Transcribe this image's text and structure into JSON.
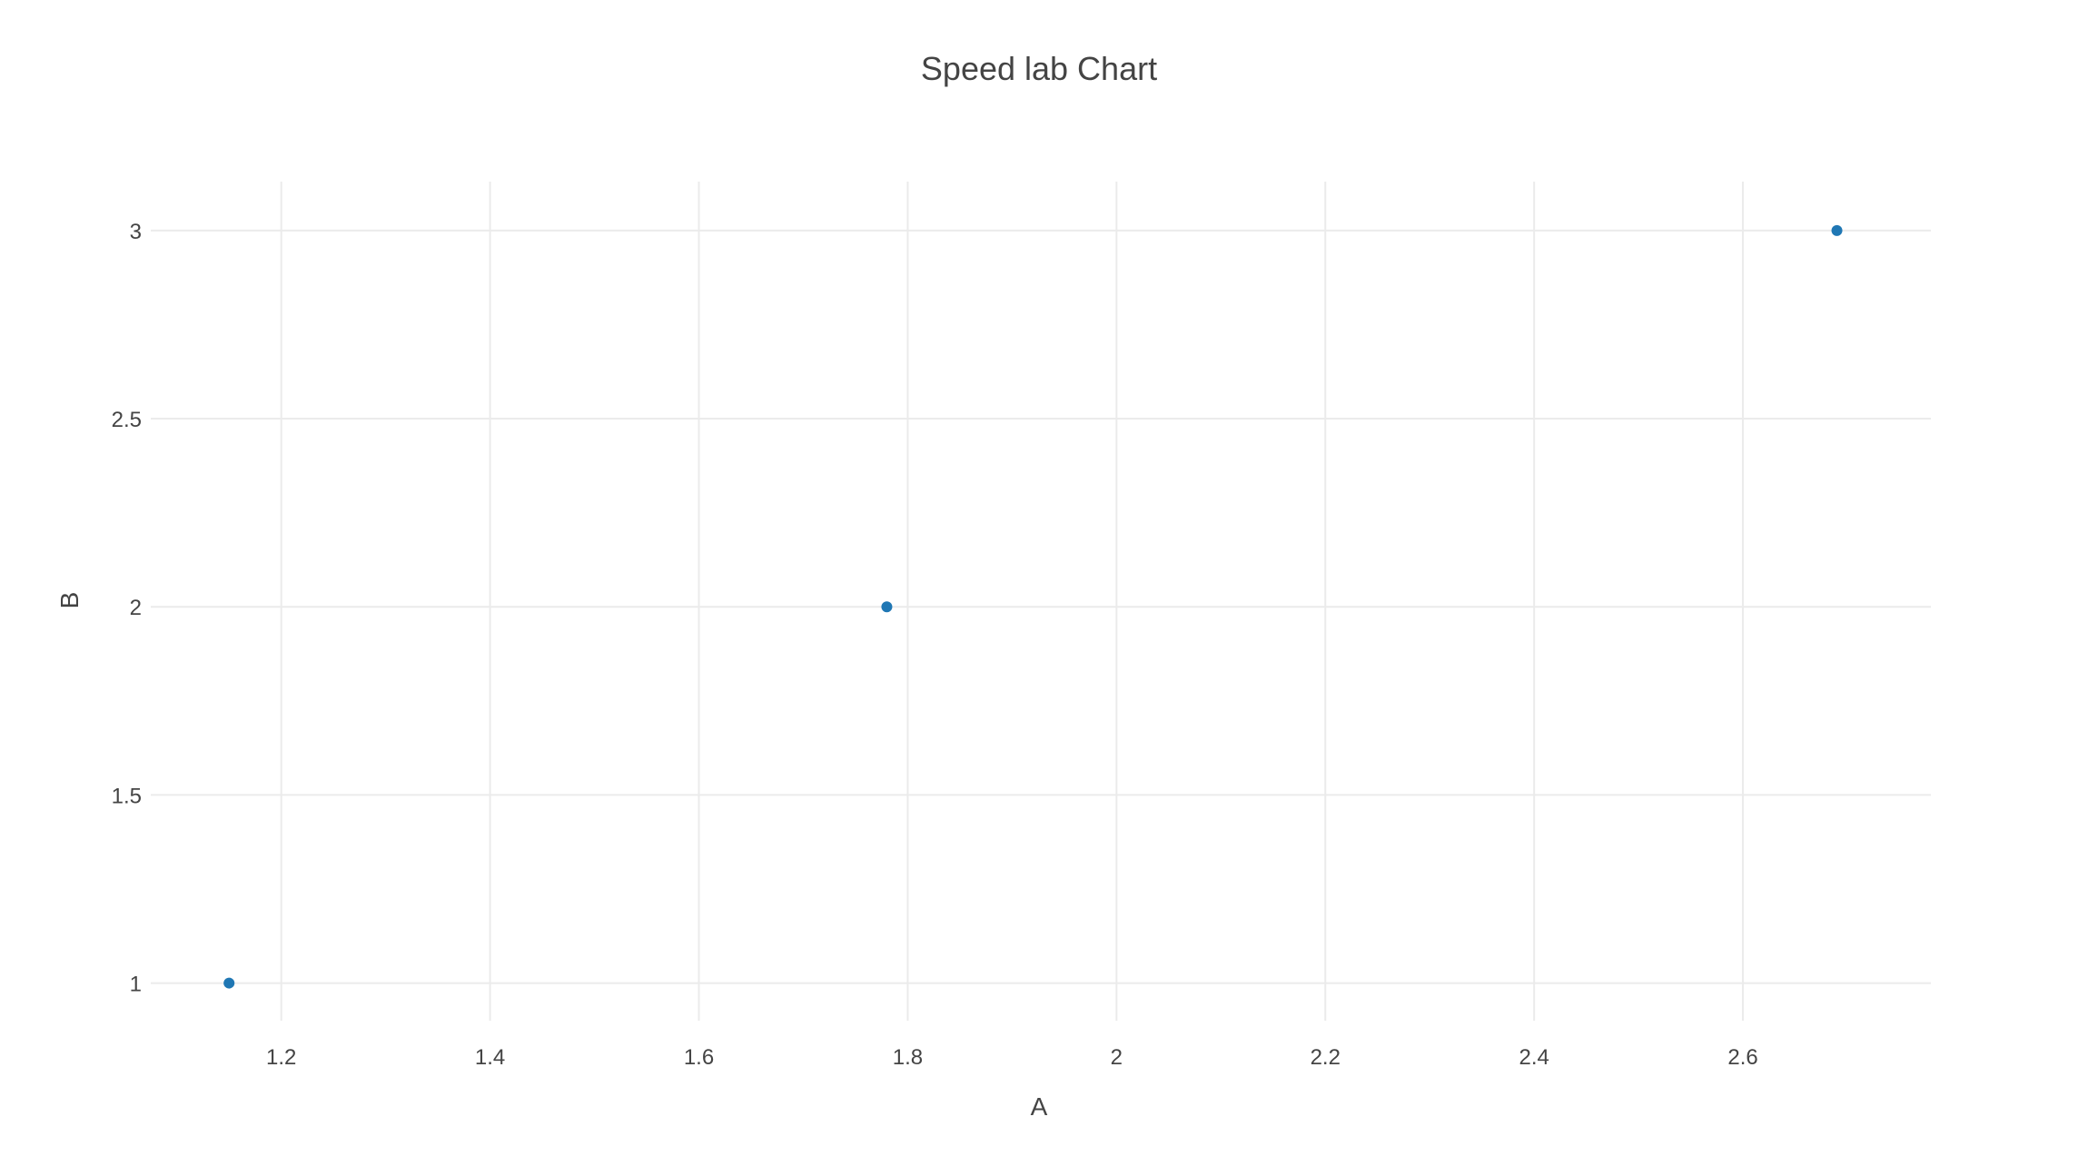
{
  "chart_data": {
    "type": "scatter",
    "title": "Speed lab Chart",
    "xlabel": "A",
    "ylabel": "B",
    "xlim": [
      1.075,
      2.78
    ],
    "ylim": [
      0.9,
      3.13
    ],
    "x_ticks": [
      1.2,
      1.4,
      1.6,
      1.8,
      2,
      2.2,
      2.4,
      2.6
    ],
    "x_tick_labels": [
      "1.2",
      "1.4",
      "1.6",
      "1.8",
      "2",
      "2.2",
      "2.4",
      "2.6"
    ],
    "y_ticks": [
      1,
      1.5,
      2,
      2.5,
      3
    ],
    "y_tick_labels": [
      "1",
      "1.5",
      "2",
      "2.5",
      "3"
    ],
    "grid": true,
    "marker_color": "#1f77b4",
    "series": [
      {
        "x": [
          1.15,
          1.78,
          2.69
        ],
        "y": [
          1,
          2,
          3
        ]
      }
    ]
  }
}
